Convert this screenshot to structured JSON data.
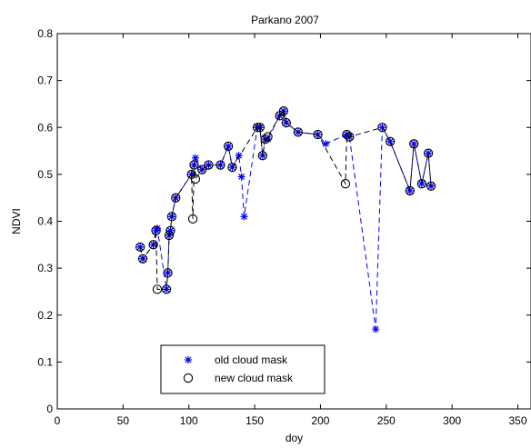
{
  "chart_data": {
    "type": "line",
    "title": "Parkano 2007",
    "xlabel": "doy",
    "ylabel": "NDVI",
    "xlim": [
      0,
      360
    ],
    "ylim": [
      0,
      0.8
    ],
    "xticks": [
      0,
      50,
      100,
      150,
      200,
      250,
      300,
      350
    ],
    "yticks": [
      0,
      0.1,
      0.2,
      0.3,
      0.4,
      0.5,
      0.6,
      0.7,
      0.8
    ],
    "grid": false,
    "legend_position": "bottom-left",
    "series": [
      {
        "name": "old cloud mask",
        "color": "#0000ff",
        "marker": "*",
        "line_style": "dashed",
        "x": [
          63,
          65,
          73,
          75,
          76,
          83,
          84,
          85,
          86,
          87,
          90,
          102,
          104,
          105,
          110,
          115,
          124,
          130,
          133,
          138,
          140,
          142,
          152,
          154,
          156,
          158,
          160,
          169,
          172,
          174,
          183,
          198,
          204,
          220,
          222,
          242,
          247,
          253,
          268,
          271,
          277,
          282,
          284
        ],
        "y": [
          0.345,
          0.32,
          0.35,
          0.38,
          0.385,
          0.255,
          0.29,
          0.37,
          0.38,
          0.41,
          0.45,
          0.5,
          0.52,
          0.535,
          0.51,
          0.52,
          0.52,
          0.56,
          0.515,
          0.54,
          0.495,
          0.41,
          0.6,
          0.6,
          0.54,
          0.575,
          0.575,
          0.625,
          0.635,
          0.61,
          0.59,
          0.585,
          0.565,
          0.585,
          0.58,
          0.17,
          0.6,
          0.57,
          0.465,
          0.565,
          0.48,
          0.545,
          0.475
        ]
      },
      {
        "name": "new cloud mask",
        "color": "#000000",
        "marker": "o",
        "line_style": "dashed",
        "x": [
          63,
          65,
          73,
          75,
          76,
          83,
          84,
          85,
          86,
          87,
          90,
          102,
          103,
          104,
          105,
          110,
          115,
          124,
          130,
          133,
          152,
          154,
          156,
          158,
          160,
          169,
          172,
          174,
          183,
          198,
          219,
          220,
          222,
          247,
          253,
          268,
          271,
          277,
          282,
          284
        ],
        "y": [
          0.345,
          0.32,
          0.35,
          0.38,
          0.255,
          0.255,
          0.29,
          0.37,
          0.38,
          0.41,
          0.45,
          0.5,
          0.405,
          0.52,
          0.49,
          0.51,
          0.52,
          0.52,
          0.56,
          0.515,
          0.6,
          0.6,
          0.54,
          0.575,
          0.58,
          0.625,
          0.635,
          0.61,
          0.59,
          0.585,
          0.48,
          0.585,
          0.58,
          0.6,
          0.57,
          0.465,
          0.565,
          0.48,
          0.545,
          0.475
        ]
      }
    ]
  }
}
